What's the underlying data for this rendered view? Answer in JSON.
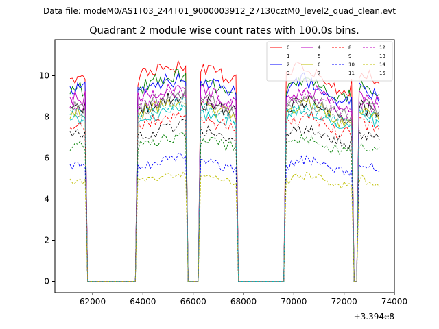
{
  "chart_data": {
    "type": "line",
    "suptitle": "Data file: modeM0/AS1T03_244T01_9000003912_27130cztM0_level2_quad_clean.evt",
    "title": "Quadrant 2 module wise count rates with 100.0s bins.",
    "xlabel": "",
    "ylabel": "",
    "x_offset_label": "+3.394e8",
    "xlim": [
      60500,
      74000
    ],
    "ylim": [
      -0.55,
      11.75
    ],
    "xticks": [
      62000,
      64000,
      66000,
      68000,
      70000,
      72000,
      74000
    ],
    "xtick_labels": [
      "62000",
      "64000",
      "66000",
      "68000",
      "70000",
      "72000",
      "74000"
    ],
    "yticks": [
      0,
      2,
      4,
      6,
      8,
      10
    ],
    "ytick_labels": [
      "0",
      "2",
      "4",
      "6",
      "8",
      "10"
    ],
    "legend_location": "upper right",
    "legend_columns": 4,
    "bin_size_s": 100,
    "segments": [
      {
        "start": 61100,
        "end": 61700
      },
      {
        "start": 63800,
        "end": 65700
      },
      {
        "start": 66300,
        "end": 67700
      },
      {
        "start": 69700,
        "end": 72300
      },
      {
        "start": 72600,
        "end": 73400
      }
    ],
    "series": [
      {
        "name": "0",
        "color": "#ff0000",
        "dashed": false,
        "level": 9.9
      },
      {
        "name": "1",
        "color": "#008000",
        "dashed": false,
        "level": 9.4
      },
      {
        "name": "2",
        "color": "#0000ff",
        "dashed": false,
        "level": 9.3
      },
      {
        "name": "3",
        "color": "#000000",
        "dashed": false,
        "level": 8.4
      },
      {
        "name": "4",
        "color": "#bf00bf",
        "dashed": false,
        "level": 8.9
      },
      {
        "name": "5",
        "color": "#00bfbf",
        "dashed": false,
        "level": 7.9
      },
      {
        "name": "6",
        "color": "#bfbf00",
        "dashed": false,
        "level": 8.2
      },
      {
        "name": "7",
        "color": "#808080",
        "dashed": false,
        "level": 8.5
      },
      {
        "name": "8",
        "color": "#ff0000",
        "dashed": true,
        "level": 7.6
      },
      {
        "name": "9",
        "color": "#008000",
        "dashed": true,
        "level": 6.6
      },
      {
        "name": "10",
        "color": "#0000ff",
        "dashed": true,
        "level": 5.6
      },
      {
        "name": "11",
        "color": "#000000",
        "dashed": true,
        "level": 7.1
      },
      {
        "name": "12",
        "color": "#bf00bf",
        "dashed": true,
        "level": 8.6
      },
      {
        "name": "13",
        "color": "#00bfbf",
        "dashed": true,
        "level": 8.1
      },
      {
        "name": "14",
        "color": "#bfbf00",
        "dashed": true,
        "level": 4.9
      },
      {
        "name": "15",
        "color": "#808080",
        "dashed": true,
        "level": 8.3
      }
    ]
  }
}
